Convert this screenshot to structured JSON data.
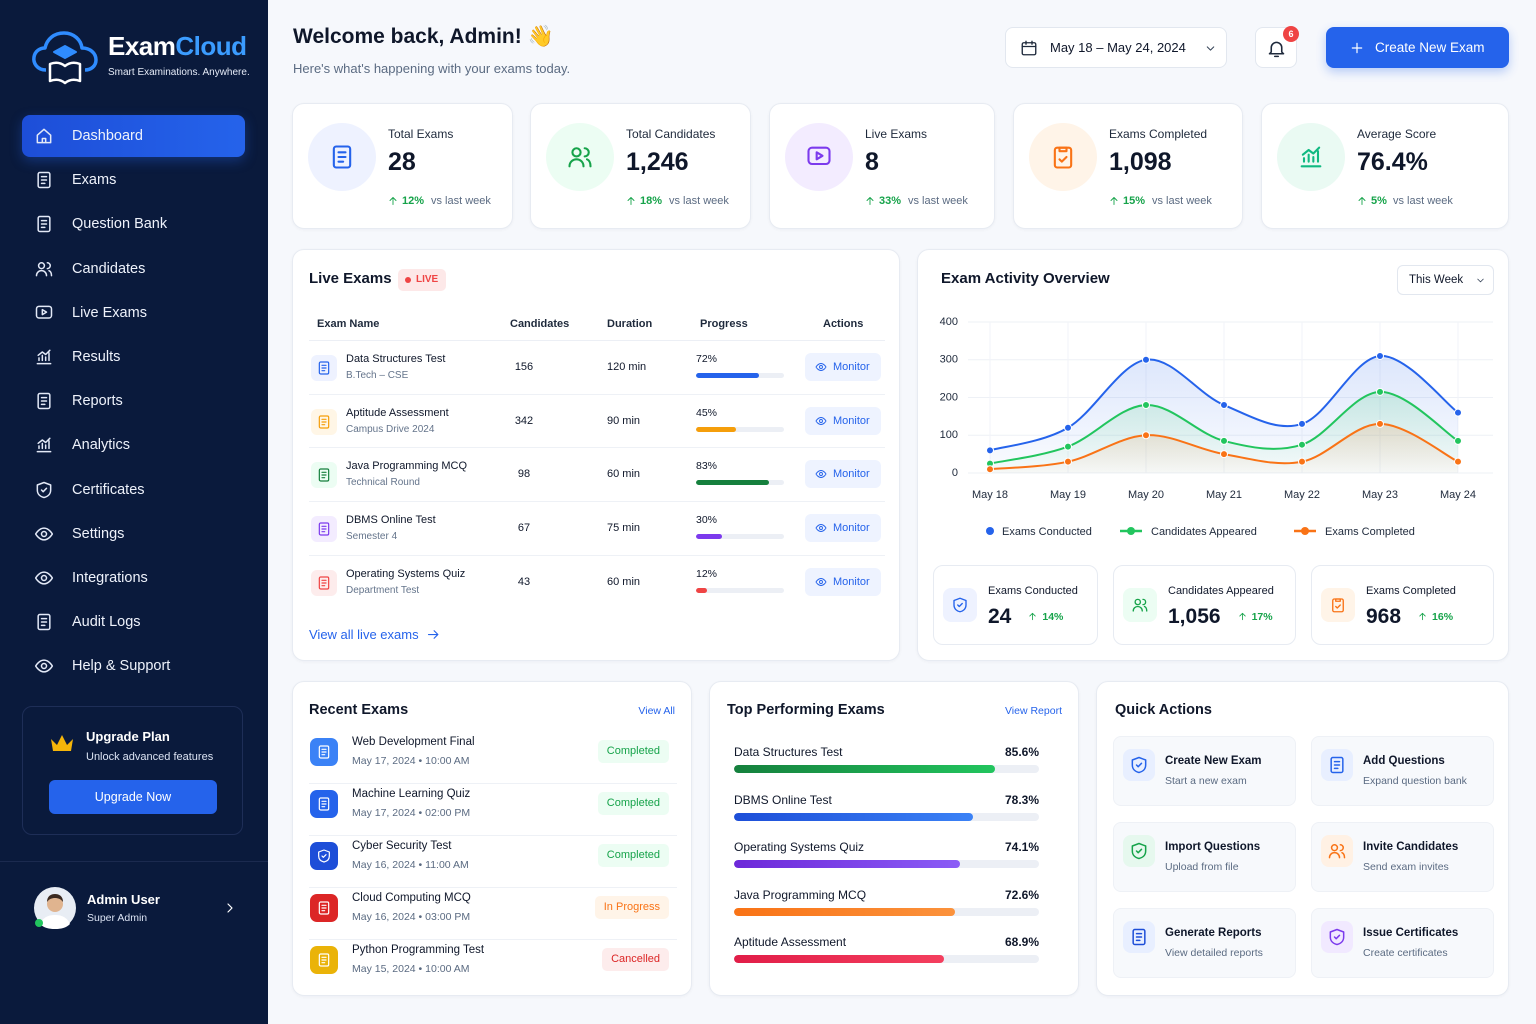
{
  "sidebar": {
    "brand": {
      "name": "Exam",
      "name_accent": "Cloud",
      "tagline": "Smart Examinations. Anywhere."
    },
    "nav": [
      "Dashboard",
      "Exams",
      "Question Bank",
      "Candidates",
      "Live Exams",
      "Results",
      "Reports",
      "Analytics",
      "Certificates",
      "Settings",
      "Integrations",
      "Audit Logs",
      "Help & Support"
    ],
    "active_nav": 0,
    "upgrade": {
      "title": "Upgrade Plan",
      "text": "Unlock advanced features",
      "button": "Upgrade Now"
    },
    "user": {
      "name": "Admin User",
      "role": "Super Admin"
    }
  },
  "header": {
    "title": "Welcome back, Admin! 👋",
    "subtitle": "Here's what's happening with your exams today.",
    "date_range": "May 18 – May 24, 2024",
    "notifications": 6,
    "create_button": "Create New Exam"
  },
  "stats": [
    {
      "label": "Total Exams",
      "value": "28",
      "change": "12%",
      "change_text": "vs last week",
      "color": "#2563eb",
      "bg": "#eef2ff"
    },
    {
      "label": "Total Candidates",
      "value": "1,246",
      "change": "18%",
      "change_text": "vs last week",
      "color": "#16a34a",
      "bg": "#ecfdf3"
    },
    {
      "label": "Live Exams",
      "value": "8",
      "change": "33%",
      "change_text": "vs last week",
      "color": "#7c3aed",
      "bg": "#f3ecff"
    },
    {
      "label": "Exams Completed",
      "value": "1,098",
      "change": "15%",
      "change_text": "vs last week",
      "color": "#f97316",
      "bg": "#fff4e8"
    },
    {
      "label": "Average Score",
      "value": "76.4%",
      "change": "5%",
      "change_text": "vs last week",
      "color": "#10b981",
      "bg": "#eafaf3"
    }
  ],
  "live_exams": {
    "title": "Live Exams",
    "badge": "LIVE",
    "columns": [
      "Exam Name",
      "Candidates",
      "Duration",
      "Progress",
      "Actions"
    ],
    "rows": [
      {
        "name": "Data Structures Test",
        "sub": "B.Tech – CSE",
        "candidates": 156,
        "duration": "120 min",
        "progress": 72,
        "progress_label": "72%",
        "action": "Monitor",
        "color": "#2563eb",
        "bg": "#eef2ff"
      },
      {
        "name": "Aptitude Assessment",
        "sub": "Campus Drive 2024",
        "candidates": 342,
        "duration": "90 min",
        "progress": 45,
        "progress_label": "45%",
        "action": "Monitor",
        "color": "#f59e0b",
        "bg": "#fff6e6"
      },
      {
        "name": "Java Programming MCQ",
        "sub": "Technical Round",
        "candidates": 98,
        "duration": "60 min",
        "progress": 83,
        "progress_label": "83%",
        "action": "Monitor",
        "color": "#15803d",
        "bg": "#ecfdf3"
      },
      {
        "name": "DBMS Online Test",
        "sub": "Semester 4",
        "candidates": 67,
        "duration": "75 min",
        "progress": 30,
        "progress_label": "30%",
        "action": "Monitor",
        "color": "#7c3aed",
        "bg": "#f3ecff"
      },
      {
        "name": "Operating Systems Quiz",
        "sub": "Department Test",
        "candidates": 43,
        "duration": "60 min",
        "progress": 12,
        "progress_label": "12%",
        "action": "Monitor",
        "color": "#ef4444",
        "bg": "#fdecec"
      }
    ],
    "link": "View all live exams"
  },
  "chart_data": {
    "type": "line",
    "title": "Exam Activity Overview",
    "filter": "This Week",
    "categories": [
      "May 18",
      "May 19",
      "May 20",
      "May 21",
      "May 22",
      "May 23",
      "May 24"
    ],
    "ylim": [
      0,
      400
    ],
    "yticks": [
      0,
      100,
      200,
      300,
      400
    ],
    "grid": true,
    "series": [
      {
        "name": "Exams Conducted",
        "color": "#2563eb",
        "values": [
          60,
          120,
          300,
          180,
          130,
          310,
          160
        ]
      },
      {
        "name": "Candidates Appeared",
        "color": "#22c55e",
        "values": [
          25,
          70,
          180,
          85,
          75,
          215,
          85
        ]
      },
      {
        "name": "Exams Completed",
        "color": "#f97316",
        "values": [
          10,
          30,
          100,
          50,
          30,
          130,
          30
        ]
      }
    ]
  },
  "activity_summary": [
    {
      "label": "Exams Conducted",
      "value": "24",
      "change": "14%",
      "color": "#2563eb",
      "bg": "#eef2ff"
    },
    {
      "label": "Candidates Appeared",
      "value": "1,056",
      "change": "17%",
      "color": "#16a34a",
      "bg": "#ecfdf3"
    },
    {
      "label": "Exams Completed",
      "value": "968",
      "change": "16%",
      "color": "#f97316",
      "bg": "#fff4e8"
    }
  ],
  "recent_exams": {
    "title": "Recent Exams",
    "link": "View All",
    "items": [
      {
        "name": "Web Development Final",
        "meta": "May 17, 2024 • 10:00 AM",
        "status": "Completed",
        "color": "#16a34a",
        "bg": "#ecfdf3",
        "icon": "#3b82f6"
      },
      {
        "name": "Machine Learning Quiz",
        "meta": "May 17, 2024 • 02:00 PM",
        "status": "Completed",
        "color": "#16a34a",
        "bg": "#ecfdf3",
        "icon": "#2563eb"
      },
      {
        "name": "Cyber Security Test",
        "meta": "May 16, 2024 • 11:00 AM",
        "status": "Completed",
        "color": "#16a34a",
        "bg": "#ecfdf3",
        "icon": "#1d4ed8"
      },
      {
        "name": "Cloud Computing MCQ",
        "meta": "May 16, 2024 • 03:00 PM",
        "status": "In Progress",
        "color": "#f97316",
        "bg": "#fff4e8",
        "icon": "#dc2626"
      },
      {
        "name": "Python Programming Test",
        "meta": "May 15, 2024 • 10:00 AM",
        "status": "Cancelled",
        "color": "#dc2626",
        "bg": "#fdecec",
        "icon": "#eab308"
      }
    ]
  },
  "top_exams": {
    "title": "Top Performing Exams",
    "link": "View Report",
    "items": [
      {
        "name": "Data Structures Test",
        "value": 85.6,
        "value_label": "85.6%",
        "color": "#15803d",
        "color2": "#22c55e"
      },
      {
        "name": "DBMS Online Test",
        "value": 78.3,
        "value_label": "78.3%",
        "color": "#1d4ed8",
        "color2": "#3b82f6"
      },
      {
        "name": "Operating Systems Quiz",
        "value": 74.1,
        "value_label": "74.1%",
        "color": "#6d28d9",
        "color2": "#8b5cf6"
      },
      {
        "name": "Java Programming MCQ",
        "value": 72.6,
        "value_label": "72.6%",
        "color": "#f97316",
        "color2": "#fb923c"
      },
      {
        "name": "Aptitude Assessment",
        "value": 68.9,
        "value_label": "68.9%",
        "color": "#e11d48",
        "color2": "#f43f5e"
      }
    ]
  },
  "quick_actions": {
    "title": "Quick Actions",
    "items": [
      {
        "title": "Create New Exam",
        "subtitle": "Start a new exam",
        "color": "#2563eb",
        "bg": "#e8efff"
      },
      {
        "title": "Add Questions",
        "subtitle": "Expand question bank",
        "color": "#2563eb",
        "bg": "#e8efff"
      },
      {
        "title": "Import Questions",
        "subtitle": "Upload from file",
        "color": "#16a34a",
        "bg": "#e6f8ee"
      },
      {
        "title": "Invite Candidates",
        "subtitle": "Send exam invites",
        "color": "#f97316",
        "bg": "#fff1e4"
      },
      {
        "title": "Generate Reports",
        "subtitle": "View detailed reports",
        "color": "#1d4ed8",
        "bg": "#e8efff"
      },
      {
        "title": "Issue Certificates",
        "subtitle": "Create certificates",
        "color": "#7c3aed",
        "bg": "#f1e9ff"
      }
    ]
  }
}
